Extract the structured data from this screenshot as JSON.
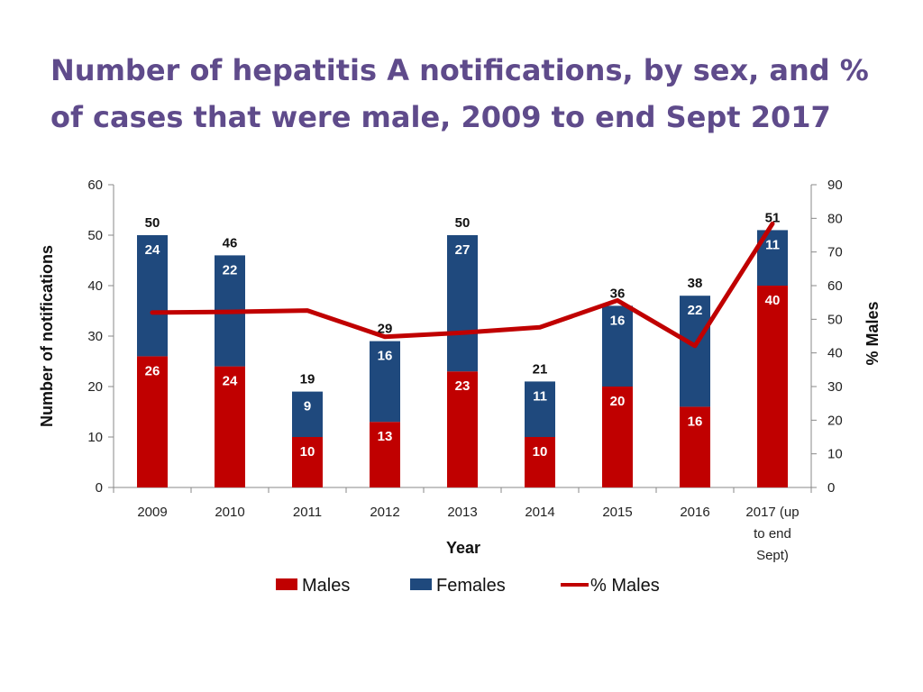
{
  "title": "Number of hepatitis A notifications, by sex, and % of cases that were male, 2009 to end Sept 2017",
  "colors": {
    "males": "#C00000",
    "females": "#1F497D",
    "pct_line": "#C00000",
    "title": "#5F4B8B"
  },
  "chart_data": {
    "type": "bar",
    "stacked": true,
    "categories": [
      "2009",
      "2010",
      "2011",
      "2012",
      "2013",
      "2014",
      "2015",
      "2016",
      "2017 (up to end Sept)"
    ],
    "category_lines": [
      [
        "2009"
      ],
      [
        "2010"
      ],
      [
        "2011"
      ],
      [
        "2012"
      ],
      [
        "2013"
      ],
      [
        "2014"
      ],
      [
        "2015"
      ],
      [
        "2016"
      ],
      [
        "2017 (up",
        "to end",
        "Sept)"
      ]
    ],
    "series": [
      {
        "name": "Males",
        "values": [
          26,
          24,
          10,
          13,
          23,
          10,
          20,
          16,
          40
        ]
      },
      {
        "name": "Females",
        "values": [
          24,
          22,
          9,
          16,
          27,
          11,
          16,
          22,
          11
        ]
      }
    ],
    "totals": [
      50,
      46,
      19,
      29,
      50,
      21,
      36,
      38,
      51
    ],
    "line_series": {
      "name": "% Males",
      "axis": "right",
      "values": [
        52,
        52.2,
        52.6,
        44.8,
        46,
        47.6,
        55.6,
        42.1,
        78.4
      ]
    },
    "xlabel": "Year",
    "ylabel": "Number of notifications",
    "y2label": "% Males",
    "ylim": [
      0,
      60
    ],
    "yticks": [
      0,
      10,
      20,
      30,
      40,
      50,
      60
    ],
    "y2lim": [
      0,
      90
    ],
    "y2ticks": [
      0,
      10,
      20,
      30,
      40,
      50,
      60,
      70,
      80,
      90
    ],
    "legend": [
      "Males",
      "Females",
      "% Males"
    ],
    "legend_position": "bottom"
  }
}
